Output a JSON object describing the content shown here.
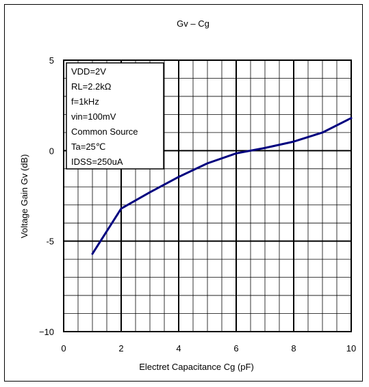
{
  "chart_data": {
    "type": "line",
    "title": "Gv – Cg",
    "xlabel": "Electret Capacitance Cg (pF)",
    "ylabel": "Voltage Gain Gv (dB)",
    "xlim": [
      0,
      10
    ],
    "ylim": [
      -10,
      5
    ],
    "xticks": [
      "0",
      "2",
      "4",
      "6",
      "8",
      "10"
    ],
    "yticks": [
      "5",
      "0",
      "-5",
      "−10"
    ],
    "grid": true,
    "series": [
      {
        "color": "#00007f",
        "x": [
          1,
          2,
          3,
          4,
          5,
          6,
          7,
          8,
          9,
          10
        ],
        "y": [
          -5.7,
          -3.2,
          -2.3,
          -1.45,
          -0.7,
          -0.15,
          0.15,
          0.5,
          1.0,
          1.8
        ]
      }
    ],
    "annotations": [
      "VDD=2V",
      "RL=2.2kΩ",
      "f=1kHz",
      "vin=100mV",
      "Common Source",
      "Ta=25℃",
      "IDSS=250uA"
    ]
  }
}
